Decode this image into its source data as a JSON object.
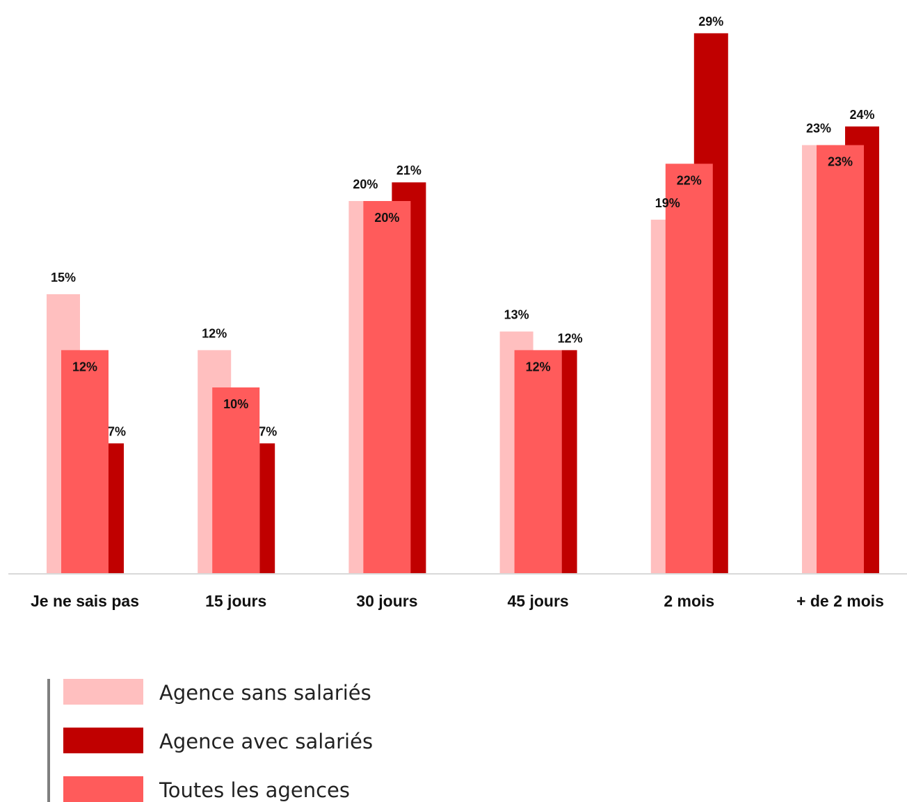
{
  "chart_data": {
    "type": "bar",
    "categories": [
      "Je ne sais pas",
      "15 jours",
      "30 jours",
      "45 jours",
      "2 mois",
      "+ de 2 mois"
    ],
    "series": [
      {
        "name": "Agence sans salariés",
        "color": "#ffbfbf",
        "values": [
          15,
          12,
          20,
          13,
          19,
          23
        ]
      },
      {
        "name": "Agence avec salariés",
        "color": "#c00000",
        "values": [
          7,
          7,
          21,
          12,
          29,
          24
        ]
      },
      {
        "name": "Toutes les agences",
        "color": "#ff5b5b",
        "values": [
          12,
          10,
          20,
          12,
          22,
          23
        ]
      }
    ],
    "value_suffix": "%",
    "ylim": [
      0,
      30
    ],
    "grid": false,
    "legend_position": "bottom-left"
  }
}
